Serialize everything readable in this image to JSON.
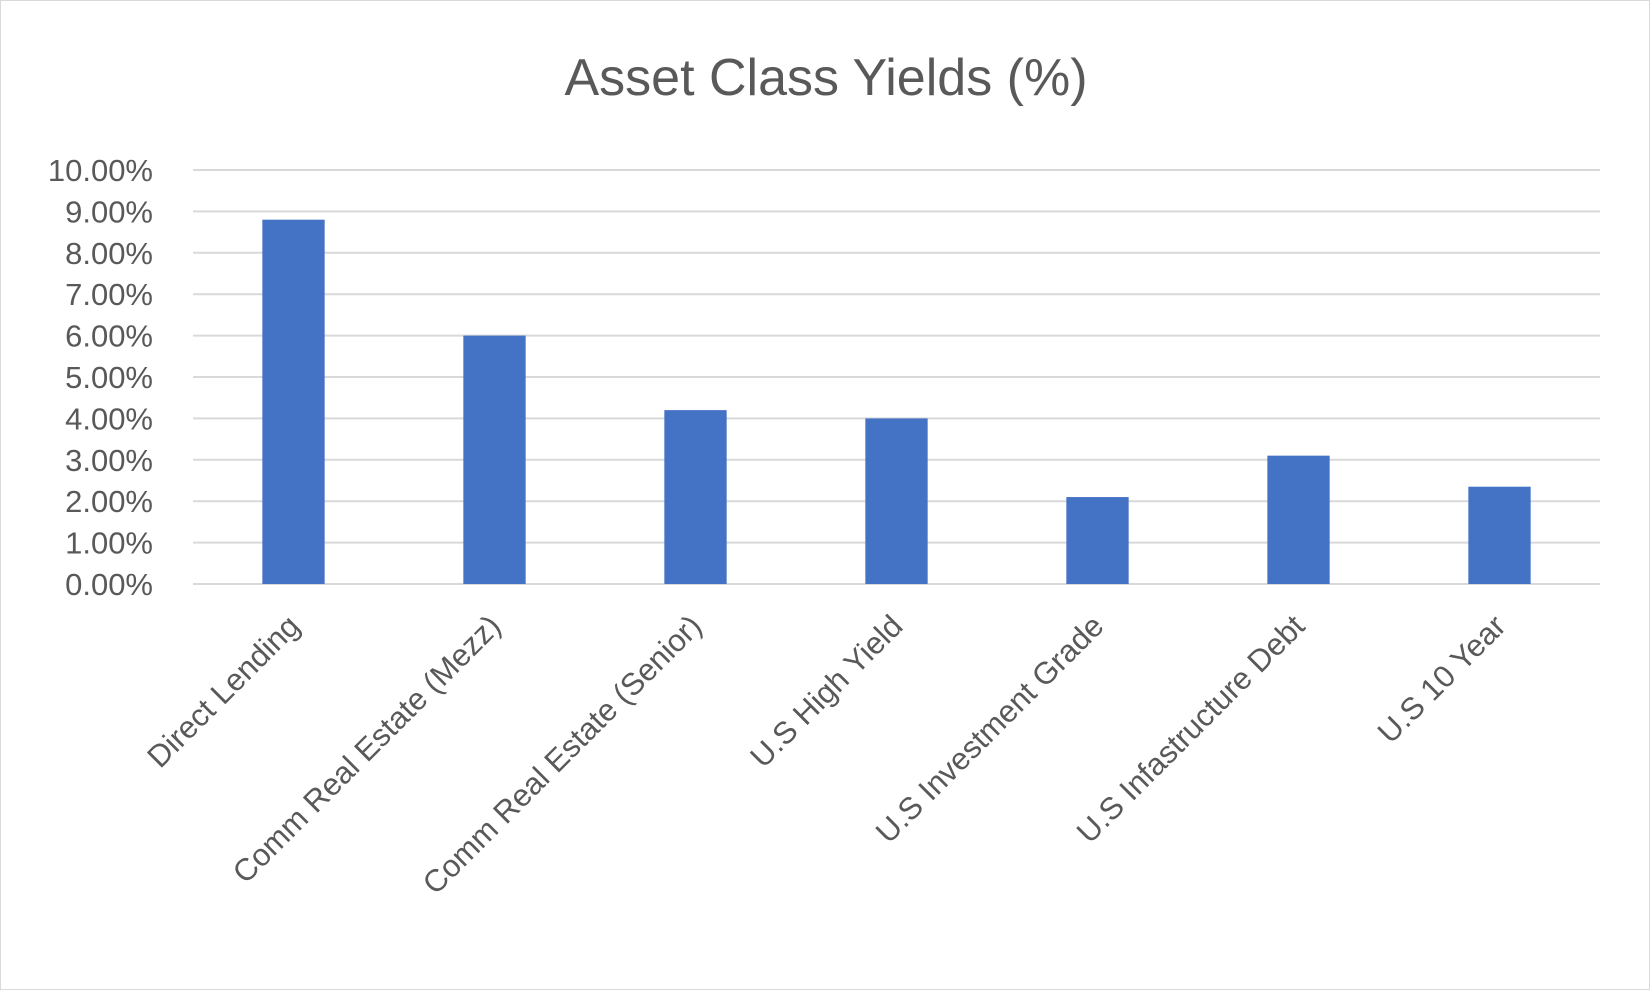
{
  "chart_data": {
    "type": "bar",
    "title": "Asset Class Yields (%)",
    "xlabel": "",
    "ylabel": "",
    "categories": [
      "Direct Lending",
      "Comm Real Estate (Mezz)",
      "Comm Real Estate (Senior)",
      "U.S High Yield",
      "U.S Investment Grade",
      "U.S Infastructure Debt",
      "U.S 10 Year"
    ],
    "series": [
      {
        "values": [
          8.8,
          6.0,
          4.2,
          4.0,
          2.1,
          3.1,
          2.35
        ],
        "color": "#4472c4"
      }
    ],
    "ylim": [
      0,
      10
    ],
    "y_ticks": [
      "0.00%",
      "1.00%",
      "2.00%",
      "3.00%",
      "4.00%",
      "5.00%",
      "6.00%",
      "7.00%",
      "8.00%",
      "9.00%",
      "10.00%"
    ],
    "grid": true,
    "legend": "none"
  }
}
